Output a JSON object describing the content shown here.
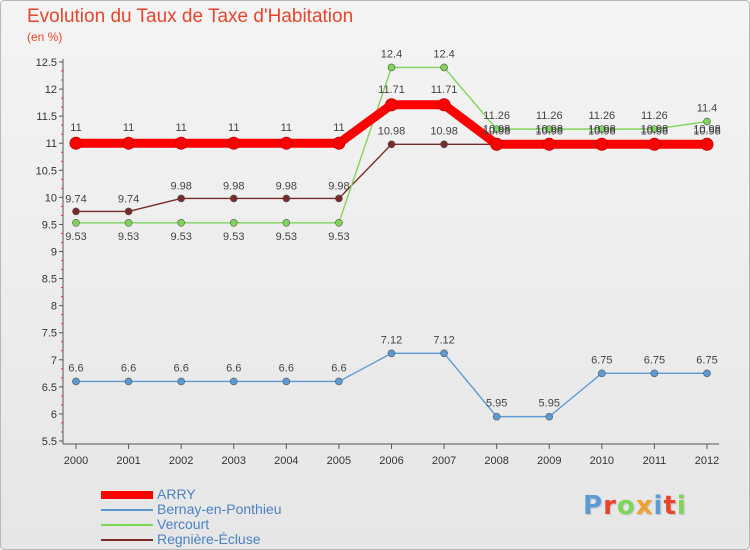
{
  "chart_data": {
    "type": "line",
    "title": "Evolution du Taux de Taxe d'Habitation",
    "subtitle": "(en %)",
    "x": [
      "2000",
      "2001",
      "2002",
      "2003",
      "2004",
      "2005",
      "2006",
      "2007",
      "2008",
      "2009",
      "2010",
      "2011",
      "2012"
    ],
    "ylim": [
      5.5,
      12.5
    ],
    "yticks": [
      "5.5",
      "6",
      "6.5",
      "7",
      "7.5",
      "8",
      "8.5",
      "9",
      "9.5",
      "10",
      "10.5",
      "11",
      "11.5",
      "12",
      "12.5"
    ],
    "grid": false,
    "legend_position": "bottom-left",
    "series": [
      {
        "name": "ARRY",
        "color": "#ff0000",
        "values": [
          11,
          11,
          11,
          11,
          11,
          11,
          11.71,
          11.71,
          10.98,
          10.98,
          10.98,
          10.98,
          10.98
        ],
        "labels": [
          "11",
          "11",
          "11",
          "11",
          "11",
          "11",
          "11.71",
          "11.71",
          "10.98",
          "10.98",
          "10.98",
          "10.98",
          "10.98"
        ]
      },
      {
        "name": "Bernay-en-Ponthieu",
        "color": "#5b9bd5",
        "values": [
          6.6,
          6.6,
          6.6,
          6.6,
          6.6,
          6.6,
          7.12,
          7.12,
          5.95,
          5.95,
          6.75,
          6.75,
          6.75
        ],
        "labels": [
          "6.6",
          "6.6",
          "6.6",
          "6.6",
          "6.6",
          "6.6",
          "7.12",
          "7.12",
          "5.95",
          "5.95",
          "6.75",
          "6.75",
          "6.75"
        ]
      },
      {
        "name": "Vercourt",
        "color": "#7fd45a",
        "values": [
          9.53,
          9.53,
          9.53,
          9.53,
          9.53,
          9.53,
          12.4,
          12.4,
          11.26,
          11.26,
          11.26,
          11.26,
          11.4
        ],
        "labels": [
          "9.53",
          "9.53",
          "9.53",
          "9.53",
          "9.53",
          "9.53",
          "12.4",
          "12.4",
          "11.26",
          "11.26",
          "11.26",
          "11.26",
          "11.4"
        ]
      },
      {
        "name": "Regnière-Écluse",
        "color": "#7b2a2a",
        "values": [
          9.74,
          9.74,
          9.98,
          9.98,
          9.98,
          9.98,
          10.98,
          10.98,
          10.98,
          10.98,
          10.98,
          10.98,
          10.98
        ],
        "labels": [
          "9.74",
          "9.74",
          "9.98",
          "9.98",
          "9.98",
          "9.98",
          "10.98",
          "10.98",
          "10.98",
          "10.98",
          "10.98",
          "10.98",
          "10.98"
        ]
      }
    ]
  },
  "legend": {
    "items": [
      {
        "label": "ARRY",
        "color": "#ff0000"
      },
      {
        "label": "Bernay-en-Ponthieu",
        "color": "#5b9bd5"
      },
      {
        "label": "Vercourt",
        "color": "#7fd45a"
      },
      {
        "label": "Regnière-Écluse",
        "color": "#7b2a2a"
      }
    ]
  },
  "logo": {
    "text": "Proxiti",
    "letter_colors": [
      "#5b9bd5",
      "#e8452c",
      "#7fd45a",
      "#f0a030",
      "#5b9bd5",
      "#e8452c",
      "#7fd45a"
    ]
  }
}
